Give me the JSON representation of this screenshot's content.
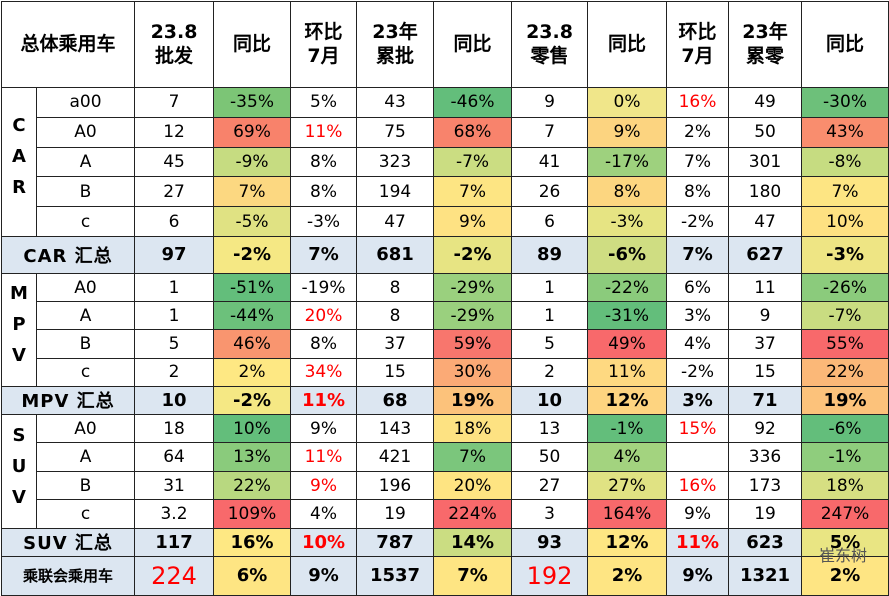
{
  "headers": [
    "总体乘用车",
    "23.8\n批发",
    "同比",
    "环比\n7月",
    "23年\n累批",
    "同比",
    "23.8\n零售",
    "同比",
    "环比\n7月",
    "23年\n累零",
    "同比"
  ],
  "groups": [
    {
      "label": "CAR",
      "rows": [
        {
          "label": "a00",
          "cells": [
            "7",
            "-35%",
            "5%",
            "43",
            "-46%",
            "9",
            "0%",
            "16%",
            "49",
            "-30%"
          ],
          "fills": [
            null,
            "#7cc576",
            null,
            null,
            "#63be7b",
            null,
            "#f0e68a",
            null,
            null,
            "#6dc07a"
          ],
          "red": [
            7
          ]
        },
        {
          "label": "A0",
          "cells": [
            "12",
            "69%",
            "11%",
            "75",
            "68%",
            "7",
            "9%",
            "2%",
            "50",
            "43%"
          ],
          "fills": [
            null,
            "#f8826b",
            null,
            null,
            "#f8836c",
            null,
            "#fcd480",
            null,
            null,
            "#f98d6e"
          ],
          "red": [
            2
          ]
        },
        {
          "label": "A",
          "cells": [
            "45",
            "-9%",
            "8%",
            "323",
            "-7%",
            "41",
            "-17%",
            "7%",
            "301",
            "-8%"
          ],
          "fills": [
            null,
            "#c6dc81",
            null,
            null,
            "#cbdd82",
            null,
            "#9ed17e",
            null,
            null,
            "#c6dc81"
          ],
          "red": []
        },
        {
          "label": "B",
          "cells": [
            "27",
            "7%",
            "8%",
            "194",
            "7%",
            "26",
            "8%",
            "8%",
            "180",
            "7%"
          ],
          "fills": [
            null,
            "#fcd881",
            null,
            null,
            "#fde583",
            null,
            "#fcd680",
            null,
            null,
            "#fde583"
          ],
          "red": []
        },
        {
          "label": "c",
          "cells": [
            "6",
            "-5%",
            "-3%",
            "47",
            "9%",
            "6",
            "-3%",
            "-2%",
            "47",
            "10%"
          ],
          "fills": [
            null,
            "#e0e283",
            null,
            null,
            "#fee283",
            null,
            "#e6e483",
            null,
            null,
            "#fee182"
          ],
          "red": []
        }
      ],
      "total": {
        "label": "CAR 汇总",
        "cells": [
          "97",
          "-2%",
          "7%",
          "681",
          "-2%",
          "89",
          "-6%",
          "7%",
          "627",
          "-3%"
        ],
        "fills": [
          null,
          "#f5e884",
          null,
          null,
          "#e7e483",
          null,
          "#cfdd82",
          null,
          null,
          "#eee584"
        ],
        "red": []
      }
    },
    {
      "label": "MPV",
      "rows": [
        {
          "label": "A0",
          "cells": [
            "1",
            "-51%",
            "-19%",
            "8",
            "-29%",
            "1",
            "-22%",
            "6%",
            "11",
            "-26%"
          ],
          "fills": [
            null,
            "#63be7b",
            null,
            null,
            "#9ad07e",
            null,
            "#8bcb7c",
            null,
            null,
            "#8bcb7c"
          ],
          "red": []
        },
        {
          "label": "A",
          "cells": [
            "1",
            "-44%",
            "20%",
            "8",
            "-29%",
            "1",
            "-31%",
            "3%",
            "9",
            "-7%"
          ],
          "fills": [
            null,
            "#6cc17b",
            null,
            null,
            "#9ad07e",
            null,
            "#63be7b",
            null,
            null,
            "#c9dc81"
          ],
          "red": [
            2
          ]
        },
        {
          "label": "B",
          "cells": [
            "5",
            "46%",
            "8%",
            "37",
            "59%",
            "5",
            "49%",
            "4%",
            "37",
            "55%"
          ],
          "fills": [
            null,
            "#f9956f",
            null,
            null,
            "#f8766d",
            null,
            "#f8696b",
            null,
            null,
            "#f8696b"
          ],
          "red": []
        },
        {
          "label": "c",
          "cells": [
            "2",
            "2%",
            "34%",
            "15",
            "30%",
            "2",
            "11%",
            "-2%",
            "15",
            "22%"
          ],
          "fills": [
            null,
            "#fee883",
            null,
            null,
            "#fbaa76",
            null,
            "#fed981",
            null,
            null,
            "#fbb878"
          ],
          "red": [
            2
          ]
        }
      ],
      "total": {
        "label": "MPV 汇总",
        "cells": [
          "10",
          "-2%",
          "11%",
          "68",
          "19%",
          "10",
          "12%",
          "3%",
          "71",
          "19%"
        ],
        "fills": [
          null,
          "#f5e884",
          null,
          null,
          "#fcc27b",
          null,
          "#fed480",
          null,
          null,
          "#fcc27b"
        ],
        "red": [
          2
        ]
      }
    },
    {
      "label": "SUV",
      "rows": [
        {
          "label": "A0",
          "cells": [
            "18",
            "10%",
            "9%",
            "143",
            "18%",
            "13",
            "-1%",
            "15%",
            "92",
            "-6%"
          ],
          "fills": [
            null,
            "#63be7b",
            null,
            null,
            "#fde282",
            null,
            "#63be7b",
            null,
            null,
            "#63be7b"
          ],
          "red": [
            7
          ]
        },
        {
          "label": "A",
          "cells": [
            "64",
            "13%",
            "11%",
            "421",
            "7%",
            "50",
            "4%",
            null,
            "336",
            "-1%"
          ],
          "fills": [
            null,
            "#8acb7c",
            null,
            null,
            "#7bc67c",
            null,
            "#a3d37f",
            null,
            null,
            "#8fcd7d"
          ],
          "red": [
            2
          ]
        },
        {
          "label": "B",
          "cells": [
            "31",
            "22%",
            "9%",
            "196",
            "20%",
            "27",
            "27%",
            "16%",
            "173",
            "18%"
          ],
          "fills": [
            null,
            "#b8d880",
            null,
            null,
            "#fee482",
            null,
            "#e0e283",
            null,
            null,
            "#d6df82"
          ],
          "red": [
            2,
            7
          ]
        },
        {
          "label": "c",
          "cells": [
            "3.2",
            "109%",
            "4%",
            "19",
            "224%",
            "3",
            "164%",
            "9%",
            "19",
            "247%"
          ],
          "fills": [
            null,
            "#f8696b",
            null,
            null,
            "#f8696b",
            null,
            "#f8696b",
            null,
            null,
            "#f8696b"
          ],
          "red": []
        }
      ],
      "total": {
        "label": "SUV 汇总",
        "cells": [
          "117",
          "16%",
          "10%",
          "787",
          "14%",
          "93",
          "12%",
          "11%",
          "623",
          "5%"
        ],
        "fills": [
          null,
          "#fee883",
          null,
          null,
          "#cbdd82",
          null,
          "#fee683",
          null,
          null,
          "#e9e583"
        ],
        "red": [
          2,
          7
        ]
      }
    }
  ],
  "grand_total": {
    "label": "乘联会乘用车",
    "cells": [
      "224",
      "6%",
      "9%",
      "1537",
      "7%",
      "192",
      "2%",
      "9%",
      "1321",
      "2%"
    ],
    "fills": [
      null,
      "#fee583",
      null,
      null,
      "#fee583",
      null,
      "#fee583",
      null,
      null,
      "#fee583"
    ],
    "red": [
      0,
      5
    ]
  },
  "watermark": "崔东树"
}
